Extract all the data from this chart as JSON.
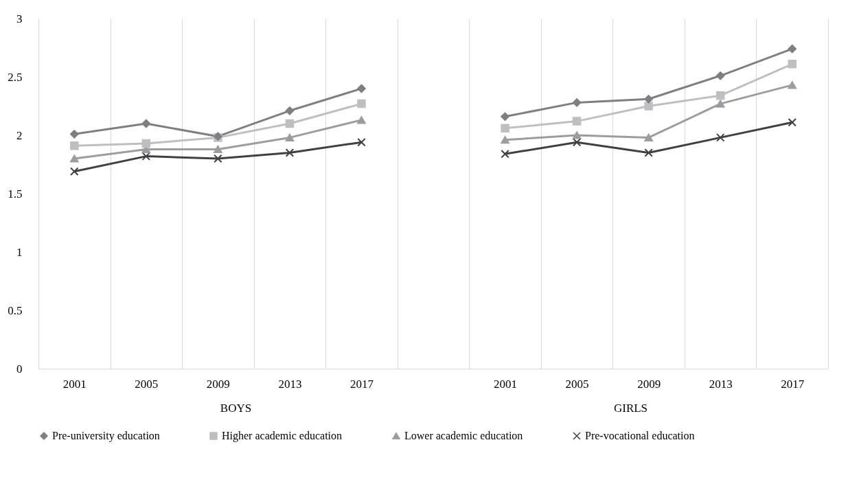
{
  "chart_data": {
    "type": "line",
    "categories": [
      "2001",
      "2005",
      "2009",
      "2013",
      "2017",
      null,
      "2001",
      "2005",
      "2009",
      "2013",
      "2017"
    ],
    "annotations": [
      "BOYS",
      "GIRLS"
    ],
    "ylim": [
      0,
      3
    ],
    "yticks": [
      0,
      0.5,
      1,
      1.5,
      2,
      2.5,
      3
    ],
    "grid": "x",
    "legend": "bottom",
    "series": [
      {
        "name": "Pre-university education",
        "color": "#7f7f83",
        "marker": "diamond",
        "values": [
          2.01,
          2.1,
          1.99,
          2.21,
          2.4,
          null,
          2.16,
          2.28,
          2.31,
          2.51,
          2.74
        ]
      },
      {
        "name": "Higher academic education",
        "color": "#bfbfc2",
        "marker": "square",
        "values": [
          1.91,
          1.93,
          1.98,
          2.1,
          2.27,
          null,
          2.06,
          2.12,
          2.25,
          2.34,
          2.61
        ]
      },
      {
        "name": "Lower academic education",
        "color": "#9d9da0",
        "marker": "triangle",
        "values": [
          1.8,
          1.88,
          1.88,
          1.98,
          2.13,
          null,
          1.96,
          2.0,
          1.98,
          2.27,
          2.43
        ]
      },
      {
        "name": "Pre-vocational education",
        "color": "#404040",
        "marker": "cross",
        "values": [
          1.69,
          1.82,
          1.8,
          1.85,
          1.94,
          null,
          1.84,
          1.94,
          1.85,
          1.98,
          2.11
        ]
      }
    ]
  }
}
